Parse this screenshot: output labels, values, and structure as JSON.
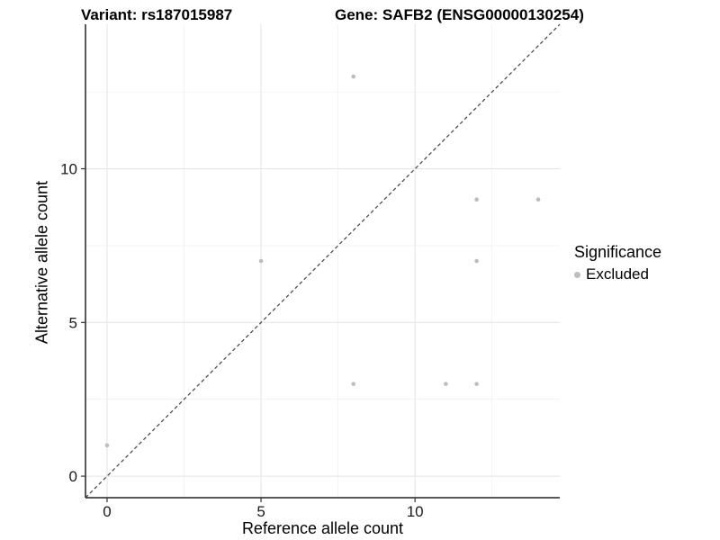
{
  "titles": {
    "variant": "Variant: rs187015987",
    "gene": "Gene: SAFB2 (ENSG00000130254)"
  },
  "axes": {
    "x_label": "Reference allele count",
    "y_label": "Alternative allele count"
  },
  "legend": {
    "title": "Significance",
    "items": [
      {
        "label": "Excluded",
        "color": "#bdbdbd",
        "marker": "circle-icon"
      }
    ]
  },
  "colors": {
    "background": "#ffffff",
    "point": "#bdbdbd",
    "grid_major": "#e3e3e3",
    "grid_minor": "#f1f1f1",
    "axis_line": "#222222",
    "tick_label": "#1a1a1a",
    "identity_line": "#404040"
  },
  "chart_data": {
    "type": "scatter",
    "title_left": "Variant: rs187015987",
    "title_right": "Gene: SAFB2 (ENSG00000130254)",
    "xlabel": "Reference allele count",
    "ylabel": "Alternative allele count",
    "xlim": [
      -0.7,
      14.7
    ],
    "ylim": [
      -0.7,
      14.7
    ],
    "x_major_ticks": [
      0,
      5,
      10
    ],
    "y_major_ticks": [
      0,
      5,
      10
    ],
    "x_minor_ticks": [
      2.5,
      7.5,
      12.5
    ],
    "y_minor_ticks": [
      2.5,
      7.5,
      12.5
    ],
    "grid": true,
    "points": [
      {
        "x": 0,
        "y": 1,
        "series": "Excluded"
      },
      {
        "x": 5,
        "y": 7,
        "series": "Excluded"
      },
      {
        "x": 8,
        "y": 3,
        "series": "Excluded"
      },
      {
        "x": 8,
        "y": 13,
        "series": "Excluded"
      },
      {
        "x": 11,
        "y": 3,
        "series": "Excluded"
      },
      {
        "x": 12,
        "y": 3,
        "series": "Excluded"
      },
      {
        "x": 12,
        "y": 7,
        "series": "Excluded"
      },
      {
        "x": 12,
        "y": 9,
        "series": "Excluded"
      },
      {
        "x": 14,
        "y": 9,
        "series": "Excluded"
      }
    ],
    "identity_line": {
      "type": "dashed",
      "slope": 1,
      "intercept": 0
    },
    "legend": {
      "title": "Significance",
      "entries": [
        "Excluded"
      ],
      "position": "right"
    }
  }
}
